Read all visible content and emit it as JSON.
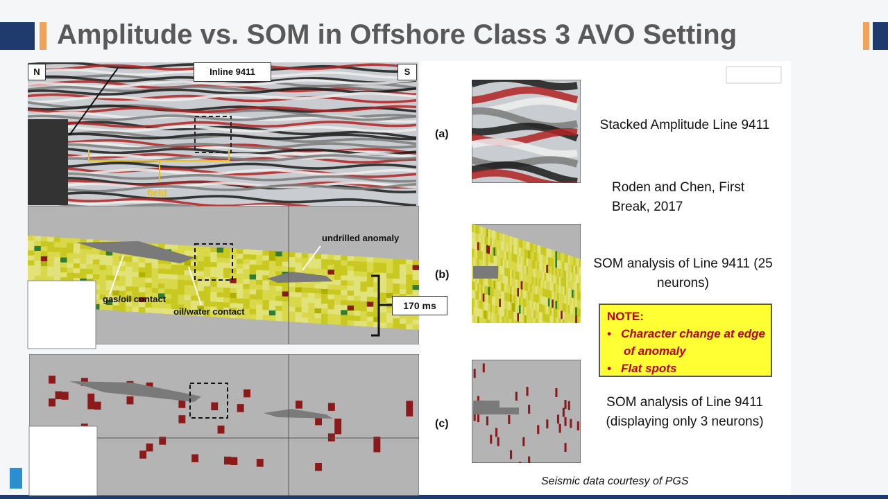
{
  "header": {
    "title": "Amplitude vs. SOM in Offshore Class 3 AVO Setting"
  },
  "panel_a": {
    "north": "N",
    "line": "Inline 9411",
    "south": "S",
    "field": "field"
  },
  "panel_b": {
    "anomaly": "undrilled anomaly",
    "gas_oil": "gas/oil contact",
    "oil_water": "oil/water contact",
    "interval": "170 ms"
  },
  "rows": [
    {
      "label": "(a)",
      "caption": "Stacked Amplitude Line 9411",
      "reference": "Roden and Chen, First Break, 2017"
    },
    {
      "label": "(b)",
      "caption": "SOM analysis of Line 9411 (25 neurons)"
    },
    {
      "label": "(c)",
      "caption": "SOM analysis of Line 9411 (displaying only 3 neurons)"
    }
  ],
  "note": {
    "title": "NOTE:",
    "items": [
      "Character change at edge of anomaly",
      "Flat spots"
    ]
  },
  "credit": "Seismic data courtesy of PGS"
}
